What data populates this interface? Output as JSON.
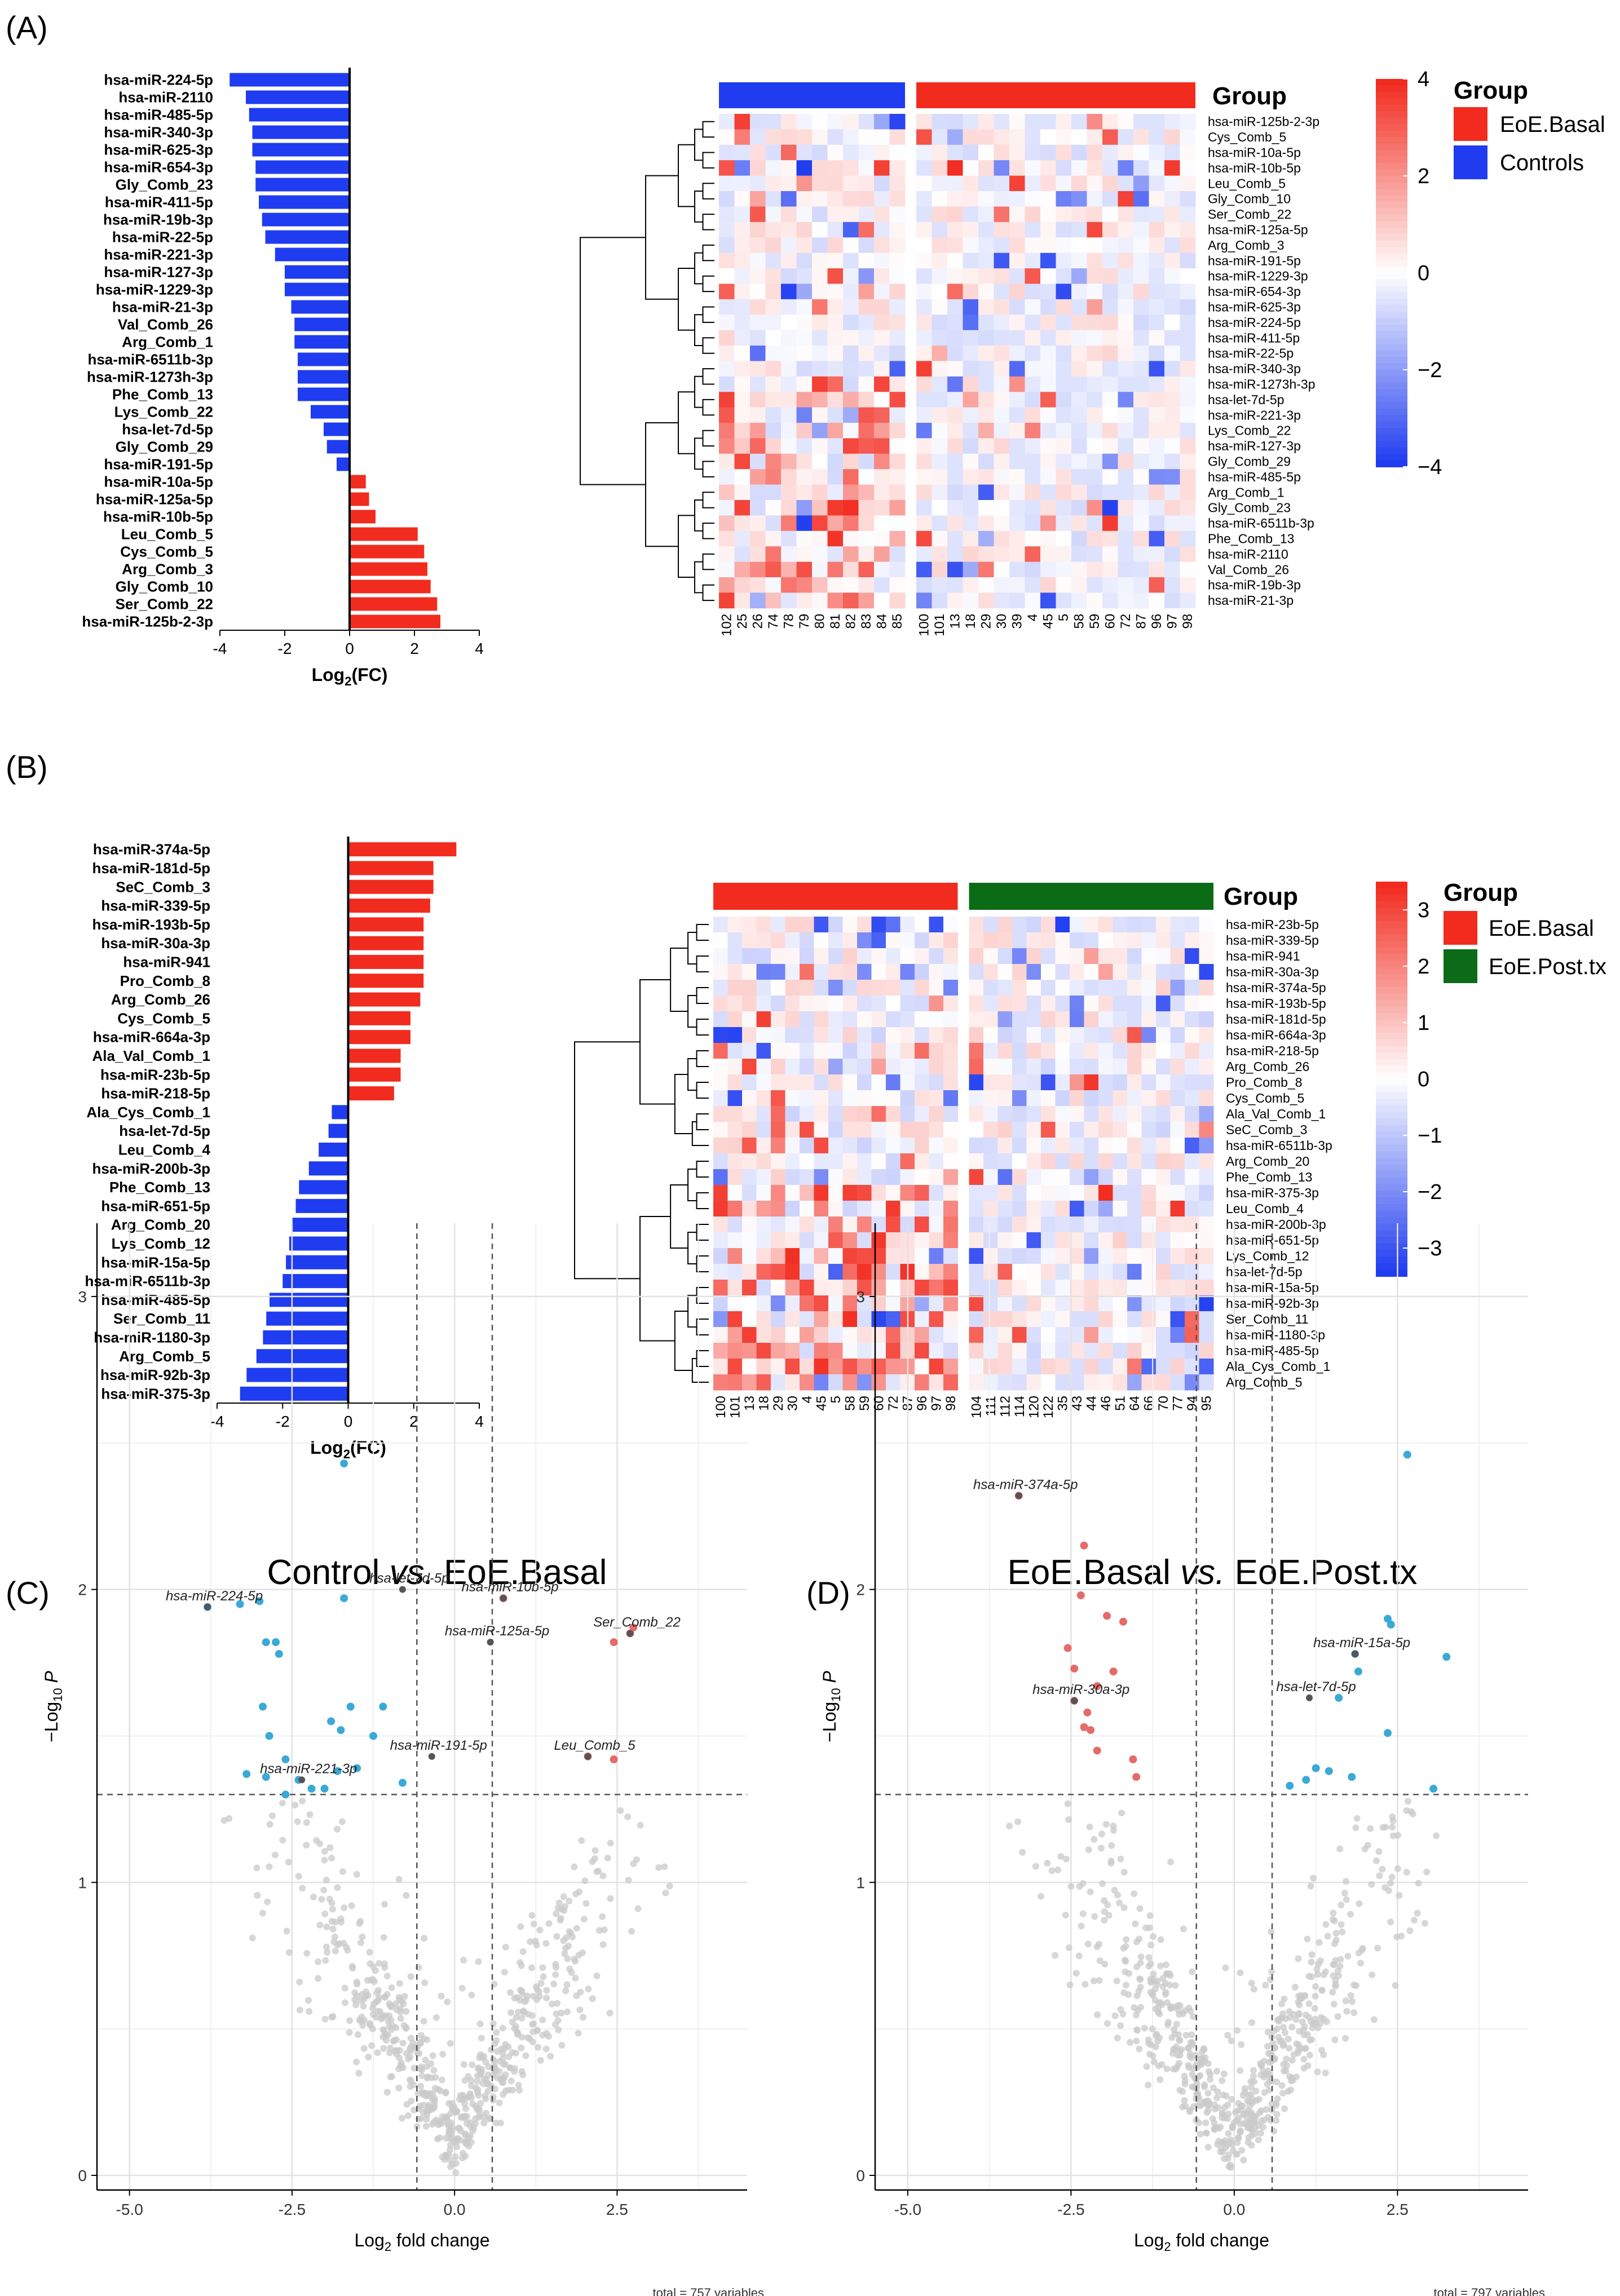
{
  "chart_data": [
    {
      "panel": "(A)",
      "type": "bar",
      "orientation": "horizontal",
      "xlabel_main": "Log",
      "xlabel_sub": "2",
      "xlabel_tail": "(FC)",
      "xlim": [
        -4,
        4
      ],
      "xticks": [
        "-4",
        "-2",
        "0",
        "2",
        "4"
      ],
      "colors": {
        "negative": "#1f3cf0",
        "positive": "#f22b1f"
      },
      "categories": [
        "hsa-miR-224-5p",
        "hsa-miR-2110",
        "hsa-miR-485-5p",
        "hsa-miR-340-3p",
        "hsa-miR-625-3p",
        "hsa-miR-654-3p",
        "Gly_Comb_23",
        "hsa-miR-411-5p",
        "hsa-miR-19b-3p",
        "hsa-miR-22-5p",
        "hsa-miR-221-3p",
        "hsa-miR-127-3p",
        "hsa-miR-1229-3p",
        "hsa-miR-21-3p",
        "Val_Comb_26",
        "Arg_Comb_1",
        "hsa-miR-6511b-3p",
        "hsa-miR-1273h-3p",
        "Phe_Comb_13",
        "Lys_Comb_22",
        "hsa-let-7d-5p",
        "Gly_Comb_29",
        "hsa-miR-191-5p",
        "hsa-miR-10a-5p",
        "hsa-miR-125a-5p",
        "hsa-miR-10b-5p",
        "Leu_Comb_5",
        "Cys_Comb_5",
        "Arg_Comb_3",
        "Gly_Comb_10",
        "Ser_Comb_22",
        "hsa-miR-125b-2-3p"
      ],
      "values": [
        -3.7,
        -3.2,
        -3.1,
        -3.0,
        -3.0,
        -2.9,
        -2.9,
        -2.8,
        -2.7,
        -2.6,
        -2.3,
        -2.0,
        -2.0,
        -1.8,
        -1.7,
        -1.7,
        -1.6,
        -1.6,
        -1.6,
        -1.2,
        -0.8,
        -0.7,
        -0.4,
        0.5,
        0.6,
        0.8,
        2.1,
        2.3,
        2.4,
        2.5,
        2.7,
        2.8
      ]
    },
    {
      "panel": "(A)",
      "type": "heatmap",
      "legend_title": "Group",
      "groups": [
        {
          "name": "EoE.Basal",
          "color": "#f22b1f"
        },
        {
          "name": "Controls",
          "color": "#1f3cf0"
        }
      ],
      "columns_left": [
        "102",
        "25",
        "26",
        "74",
        "78",
        "79",
        "80",
        "81",
        "82",
        "83",
        "84",
        "85"
      ],
      "columns_right": [
        "100",
        "101",
        "13",
        "18",
        "29",
        "30",
        "39",
        "4",
        "45",
        "5",
        "58",
        "59",
        "60",
        "72",
        "87",
        "96",
        "97",
        "98"
      ],
      "row_labels": [
        "hsa-miR-125b-2-3p",
        "Cys_Comb_5",
        "hsa-miR-10a-5p",
        "hsa-miR-10b-5p",
        "Leu_Comb_5",
        "Gly_Comb_10",
        "Ser_Comb_22",
        "hsa-miR-125a-5p",
        "Arg_Comb_3",
        "hsa-miR-191-5p",
        "hsa-miR-1229-3p",
        "hsa-miR-654-3p",
        "hsa-miR-625-3p",
        "hsa-miR-224-5p",
        "hsa-miR-411-5p",
        "hsa-miR-22-5p",
        "hsa-miR-340-3p",
        "hsa-miR-1273h-3p",
        "hsa-let-7d-5p",
        "hsa-miR-221-3p",
        "Lys_Comb_22",
        "hsa-miR-127-3p",
        "Gly_Comb_29",
        "hsa-miR-485-5p",
        "Arg_Comb_1",
        "Gly_Comb_23",
        "hsa-miR-6511b-3p",
        "Phe_Comb_13",
        "hsa-miR-2110",
        "Val_Comb_26",
        "hsa-miR-19b-3p",
        "hsa-miR-21-3p"
      ],
      "scale_ticks": [
        "4",
        "2",
        "0",
        "−2",
        "−4"
      ],
      "scale_range": [
        -4,
        4
      ],
      "colors": {
        "low": "#1f3cf0",
        "mid": "#ffffff",
        "high": "#f22b1f"
      }
    },
    {
      "panel": "(B)",
      "type": "bar",
      "orientation": "horizontal",
      "xlabel_main": "Log",
      "xlabel_sub": "2",
      "xlabel_tail": "(FC)",
      "xlim": [
        -4,
        4
      ],
      "xticks": [
        "-4",
        "-2",
        "0",
        "2",
        "4"
      ],
      "colors": {
        "negative": "#1f3cf0",
        "positive": "#f22b1f"
      },
      "categories": [
        "hsa-miR-374a-5p",
        "hsa-miR-181d-5p",
        "SeC_Comb_3",
        "hsa-miR-339-5p",
        "hsa-miR-193b-5p",
        "hsa-miR-30a-3p",
        "hsa-miR-941",
        "Pro_Comb_8",
        "Arg_Comb_26",
        "Cys_Comb_5",
        "hsa-miR-664a-3p",
        "Ala_Val_Comb_1",
        "hsa-miR-23b-5p",
        "hsa-miR-218-5p",
        "Ala_Cys_Comb_1",
        "hsa-let-7d-5p",
        "Leu_Comb_4",
        "hsa-miR-200b-3p",
        "Phe_Comb_13",
        "hsa-miR-651-5p",
        "Arg_Comb_20",
        "Lys_Comb_12",
        "hsa-miR-15a-5p",
        "hsa-miR-6511b-3p",
        "hsa-miR-485-5p",
        "Ser_Comb_11",
        "hsa-miR-1180-3p",
        "Arg_Comb_5",
        "hsa-miR-92b-3p",
        "hsa-miR-375-3p"
      ],
      "values": [
        3.3,
        2.6,
        2.6,
        2.5,
        2.3,
        2.3,
        2.3,
        2.3,
        2.2,
        1.9,
        1.9,
        1.6,
        1.6,
        1.4,
        -0.5,
        -0.6,
        -0.9,
        -1.2,
        -1.5,
        -1.6,
        -1.7,
        -1.8,
        -1.9,
        -2.0,
        -2.4,
        -2.5,
        -2.6,
        -2.8,
        -3.1,
        -3.3
      ]
    },
    {
      "panel": "(B)",
      "type": "heatmap",
      "legend_title": "Group",
      "groups": [
        {
          "name": "EoE.Basal",
          "color": "#f22b1f"
        },
        {
          "name": "EoE.Post.tx",
          "color": "#0b6b17"
        }
      ],
      "columns_left": [
        "100",
        "101",
        "13",
        "18",
        "29",
        "30",
        "4",
        "45",
        "5",
        "58",
        "59",
        "60",
        "72",
        "87",
        "96",
        "97",
        "98"
      ],
      "columns_right": [
        "104",
        "111",
        "112",
        "114",
        "120",
        "122",
        "35",
        "43",
        "44",
        "46",
        "51",
        "64",
        "66",
        "70",
        "77",
        "94",
        "95"
      ],
      "row_labels": [
        "hsa-miR-23b-5p",
        "hsa-miR-339-5p",
        "hsa-miR-941",
        "hsa-miR-30a-3p",
        "hsa-miR-374a-5p",
        "hsa-miR-193b-5p",
        "hsa-miR-181d-5p",
        "hsa-miR-664a-3p",
        "hsa-miR-218-5p",
        "Arg_Comb_26",
        "Pro_Comb_8",
        "Cys_Comb_5",
        "Ala_Val_Comb_1",
        "SeC_Comb_3",
        "hsa-miR-6511b-3p",
        "Arg_Comb_20",
        "Phe_Comb_13",
        "hsa-miR-375-3p",
        "Leu_Comb_4",
        "hsa-miR-200b-3p",
        "hsa-miR-651-5p",
        "Lys_Comb_12",
        "hsa-let-7d-5p",
        "hsa-miR-15a-5p",
        "hsa-miR-92b-3p",
        "Ser_Comb_11",
        "hsa-miR-1180-3p",
        "hsa-miR-485-5p",
        "Ala_Cys_Comb_1",
        "Arg_Comb_5"
      ],
      "scale_ticks": [
        "3",
        "2",
        "1",
        "0",
        "−1",
        "−2",
        "−3"
      ],
      "scale_range": [
        -3.5,
        3.5
      ],
      "colors": {
        "low": "#1f3cf0",
        "mid": "#ffffff",
        "high": "#f22b1f"
      }
    },
    {
      "panel": "(C)",
      "type": "scatter",
      "title_pre": "Control ",
      "title_em": "vs.",
      "title_post": " EoE.Basal",
      "xlabel_main": "Log",
      "xlabel_sub": "2",
      "xlabel_tail": " fold change",
      "ylabel_main": "−Log",
      "ylabel_sub": "10",
      "ylabel_tail": " P",
      "xlim": [
        -5.5,
        4.5
      ],
      "ylim": [
        -0.05,
        3.25
      ],
      "xticks": [
        "-5.0",
        "-2.5",
        "0.0",
        "2.5"
      ],
      "yticks": [
        "0",
        "1",
        "2",
        "3"
      ],
      "vlines": [
        -0.58,
        0.58
      ],
      "hline": 1.3,
      "caption": "total = 757 variables",
      "colors": {
        "ns": "#c9c9c9",
        "down": "#3aa9d8",
        "up": "#e56a6a",
        "label_point": "#555555"
      },
      "points_down": [
        [
          -3.8,
          1.94
        ],
        [
          -3.3,
          1.95
        ],
        [
          -3.0,
          1.96
        ],
        [
          -2.9,
          1.82
        ],
        [
          -2.75,
          1.82
        ],
        [
          -2.7,
          1.78
        ],
        [
          -2.95,
          1.6
        ],
        [
          -2.85,
          1.5
        ],
        [
          -2.6,
          1.42
        ],
        [
          -3.2,
          1.37
        ],
        [
          -2.9,
          1.36
        ],
        [
          -2.4,
          1.35
        ],
        [
          -2.2,
          1.32
        ],
        [
          -2.6,
          1.3
        ],
        [
          -1.7,
          2.43
        ],
        [
          -1.7,
          1.97
        ],
        [
          -1.9,
          1.55
        ],
        [
          -1.75,
          1.52
        ],
        [
          -1.6,
          1.6
        ],
        [
          -1.8,
          1.38
        ],
        [
          -1.5,
          1.39
        ],
        [
          -1.25,
          1.5
        ],
        [
          -1.1,
          1.6
        ],
        [
          -0.8,
          1.34
        ],
        [
          -2.0,
          1.32
        ]
      ],
      "points_up": [
        [
          0.75,
          1.97
        ],
        [
          2.45,
          1.82
        ],
        [
          2.7,
          1.85
        ],
        [
          2.75,
          1.87
        ],
        [
          2.05,
          1.43
        ],
        [
          2.45,
          1.42
        ]
      ],
      "labels": [
        {
          "text": "hsa-miR-224-5p",
          "x": -3.8,
          "y": 1.94
        },
        {
          "text": "hsa-let-7d-5p",
          "x": -0.8,
          "y": 2.0
        },
        {
          "text": "hsa-miR-10b-5p",
          "x": 0.75,
          "y": 1.97
        },
        {
          "text": "hsa-miR-125a-5p",
          "x": 0.55,
          "y": 1.82
        },
        {
          "text": "Ser_Comb_22",
          "x": 2.7,
          "y": 1.85
        },
        {
          "text": "hsa-miR-191-5p",
          "x": -0.35,
          "y": 1.43
        },
        {
          "text": "hsa-miR-221-3p",
          "x": -2.35,
          "y": 1.35
        },
        {
          "text": "Leu_Comb_5",
          "x": 2.05,
          "y": 1.43
        }
      ]
    },
    {
      "panel": "(D)",
      "type": "scatter",
      "title_pre": "EoE.Basal ",
      "title_em": "vs.",
      "title_post": " EoE.Post.tx",
      "xlabel_main": "Log",
      "xlabel_sub": "2",
      "xlabel_tail": " fold change",
      "ylabel_main": "−Log",
      "ylabel_sub": "10",
      "ylabel_tail": " P",
      "xlim": [
        -5.5,
        4.5
      ],
      "ylim": [
        -0.05,
        3.25
      ],
      "xticks": [
        "-5.0",
        "-2.5",
        "0.0",
        "2.5"
      ],
      "yticks": [
        "0",
        "1",
        "2",
        "3"
      ],
      "vlines": [
        -0.58,
        0.58
      ],
      "hline": 1.3,
      "caption": "total = 797 variables",
      "colors": {
        "ns": "#c9c9c9",
        "down": "#3aa9d8",
        "up": "#e56a6a",
        "label_point": "#555555"
      },
      "points_up": [
        [
          -3.3,
          2.32
        ],
        [
          -2.3,
          2.15
        ],
        [
          -2.35,
          1.98
        ],
        [
          -1.95,
          1.91
        ],
        [
          -1.7,
          1.89
        ],
        [
          -2.55,
          1.8
        ],
        [
          -2.45,
          1.73
        ],
        [
          -2.1,
          1.67
        ],
        [
          -1.85,
          1.72
        ],
        [
          -2.45,
          1.62
        ],
        [
          -2.25,
          1.58
        ],
        [
          -2.3,
          1.53
        ],
        [
          -2.2,
          1.52
        ],
        [
          -1.55,
          1.42
        ],
        [
          -2.1,
          1.45
        ],
        [
          -1.5,
          1.36
        ]
      ],
      "points_down": [
        [
          2.65,
          2.46
        ],
        [
          2.4,
          1.88
        ],
        [
          2.35,
          1.9
        ],
        [
          1.85,
          1.78
        ],
        [
          1.9,
          1.72
        ],
        [
          3.25,
          1.77
        ],
        [
          1.6,
          1.63
        ],
        [
          2.35,
          1.51
        ],
        [
          1.25,
          1.39
        ],
        [
          1.45,
          1.38
        ],
        [
          1.8,
          1.36
        ],
        [
          0.85,
          1.33
        ],
        [
          3.05,
          1.32
        ],
        [
          1.1,
          1.35
        ]
      ],
      "labels": [
        {
          "text": "hsa-miR-374a-5p",
          "x": -3.3,
          "y": 2.32
        },
        {
          "text": "hsa-miR-30a-3p",
          "x": -2.45,
          "y": 1.62
        },
        {
          "text": "hsa-miR-15a-5p",
          "x": 1.85,
          "y": 1.78
        },
        {
          "text": "hsa-let-7d-5p",
          "x": 1.15,
          "y": 1.63
        }
      ]
    }
  ],
  "panel_labels": [
    "(A)",
    "(B)",
    "(C)",
    "(D)"
  ]
}
